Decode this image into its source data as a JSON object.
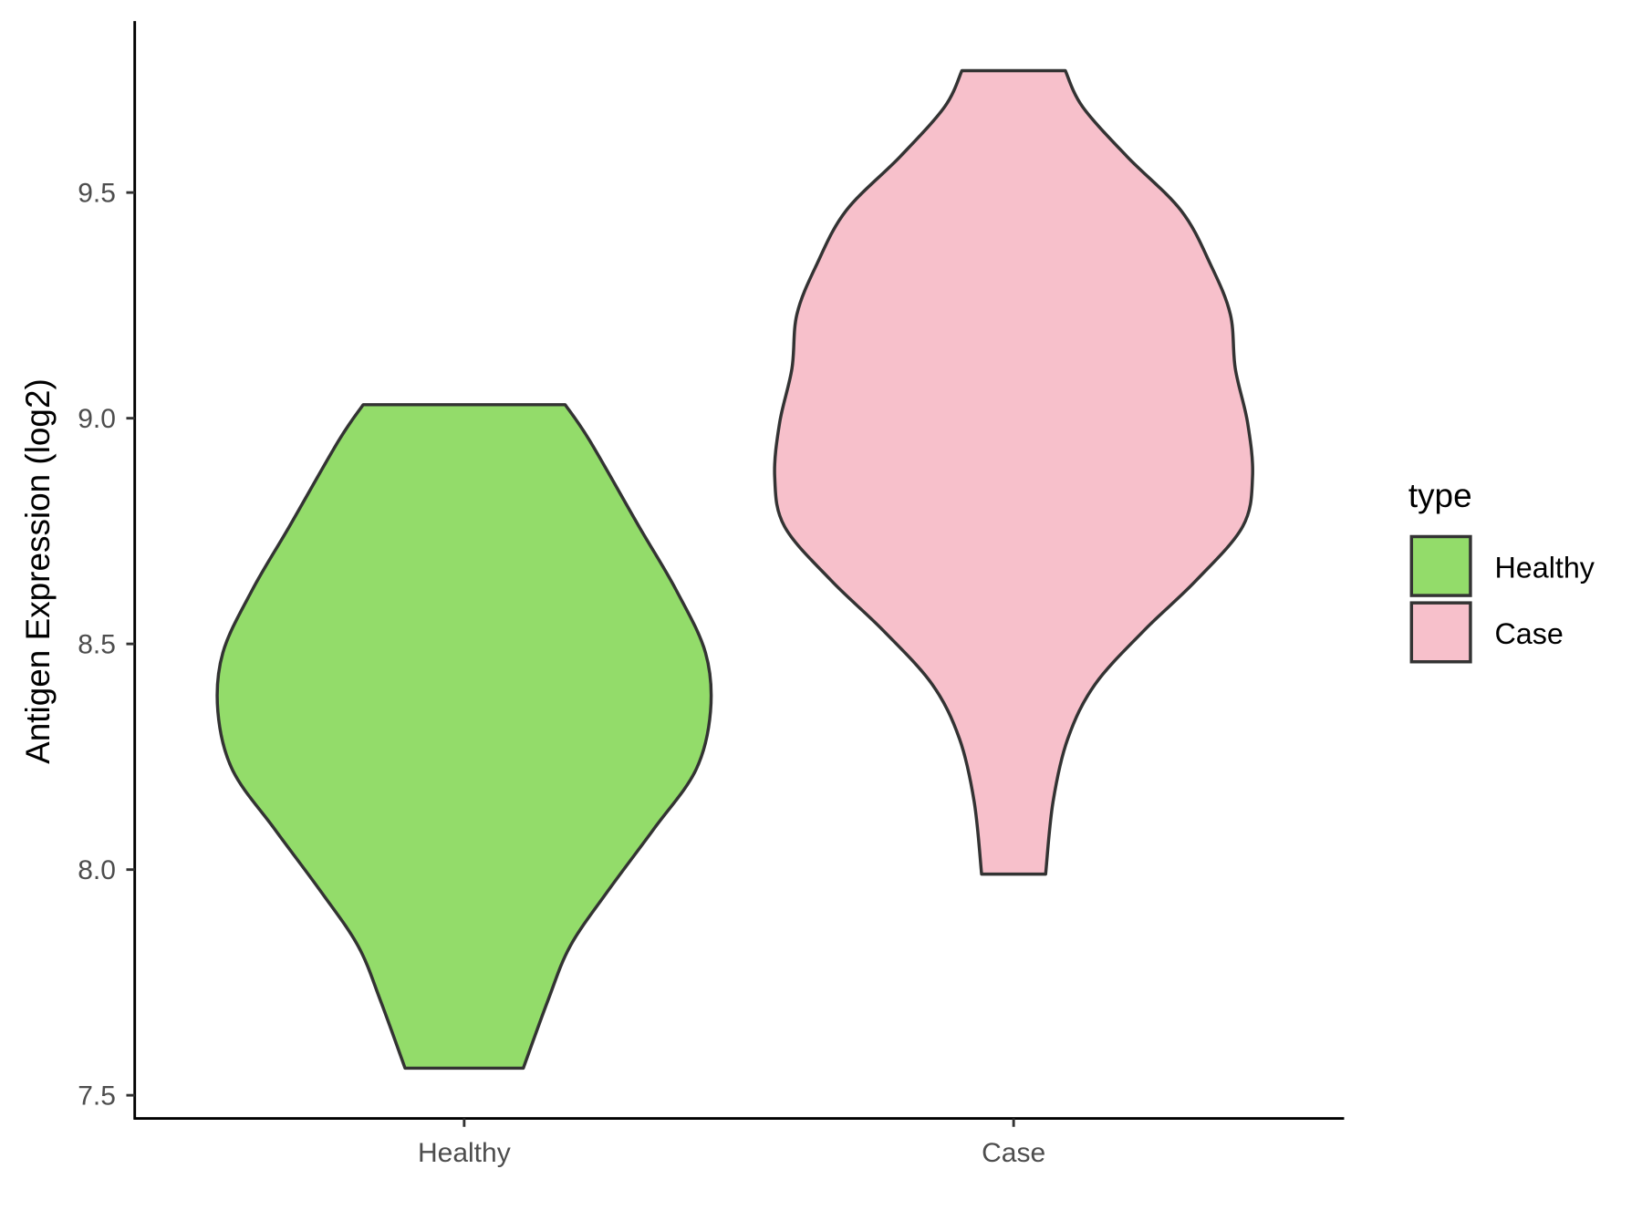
{
  "chart_data": {
    "type": "violin",
    "title": "",
    "xlabel": "",
    "ylabel": "Antigen Expression (log2)",
    "ylim": [
      7.45,
      9.82
    ],
    "yticks": [
      "7.5",
      "8.0",
      "8.5",
      "9.0",
      "9.5"
    ],
    "categories": [
      "Healthy",
      "Case"
    ],
    "grid": false,
    "legend": {
      "title": "type",
      "position": "right",
      "entries": [
        "Healthy",
        "Case"
      ]
    },
    "series": [
      {
        "name": "Healthy",
        "color": "#93DC6A",
        "min": 7.56,
        "max": 9.03,
        "density_profile": {
          "values": [
            9.03,
            8.95,
            8.76,
            8.62,
            8.48,
            8.35,
            8.22,
            8.09,
            7.95,
            7.83,
            7.71,
            7.56
          ],
          "relative_width": [
            0.41,
            0.51,
            0.71,
            0.86,
            0.98,
            1.0,
            0.94,
            0.77,
            0.58,
            0.43,
            0.34,
            0.24
          ]
        }
      },
      {
        "name": "Case",
        "color": "#F7C0CB",
        "min": 7.99,
        "max": 9.77,
        "density_profile": {
          "values": [
            9.77,
            9.69,
            9.58,
            9.46,
            9.34,
            9.23,
            9.11,
            8.99,
            8.87,
            8.76,
            8.64,
            8.53,
            8.41,
            8.29,
            8.15,
            7.99
          ],
          "relative_width": [
            0.21,
            0.28,
            0.46,
            0.68,
            0.8,
            0.88,
            0.9,
            0.95,
            0.97,
            0.93,
            0.74,
            0.53,
            0.33,
            0.22,
            0.16,
            0.13
          ]
        }
      }
    ]
  }
}
